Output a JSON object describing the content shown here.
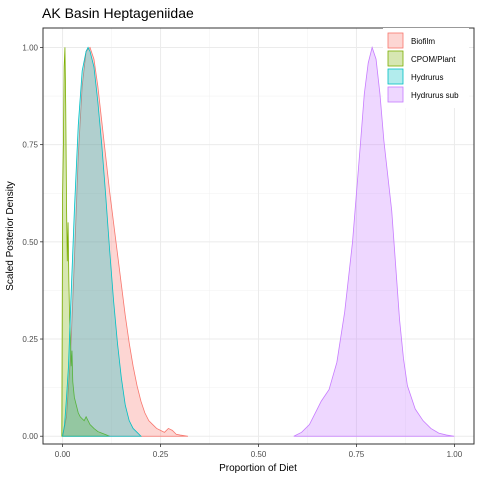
{
  "chart_data": {
    "type": "area",
    "title": "AK Basin Heptageniidae",
    "xlabel": "Proportion of Diet",
    "ylabel": "Scaled Posterior Density",
    "xlim": [
      -0.05,
      1.05
    ],
    "ylim": [
      -0.02,
      1.05
    ],
    "x_ticks": [
      0,
      0.25,
      0.5,
      0.75,
      1
    ],
    "x_tick_labels": [
      "0.00",
      "0.25",
      "0.50",
      "0.75",
      "1.00"
    ],
    "y_ticks": [
      0,
      0.25,
      0.5,
      0.75,
      1
    ],
    "y_tick_labels": [
      "0.00",
      "0.25",
      "0.50",
      "0.75",
      "1.00"
    ],
    "grid": true,
    "legend_position": "top-right",
    "series": [
      {
        "name": "Biofilm",
        "fill": "#f8766d",
        "points": [
          [
            0.0,
            0.0
          ],
          [
            0.01,
            0.05
          ],
          [
            0.02,
            0.2
          ],
          [
            0.03,
            0.45
          ],
          [
            0.04,
            0.72
          ],
          [
            0.05,
            0.9
          ],
          [
            0.06,
            0.99
          ],
          [
            0.07,
            1.0
          ],
          [
            0.08,
            0.97
          ],
          [
            0.09,
            0.9
          ],
          [
            0.1,
            0.81
          ],
          [
            0.11,
            0.72
          ],
          [
            0.12,
            0.63
          ],
          [
            0.13,
            0.55
          ],
          [
            0.14,
            0.47
          ],
          [
            0.15,
            0.39
          ],
          [
            0.16,
            0.31
          ],
          [
            0.17,
            0.24
          ],
          [
            0.18,
            0.18
          ],
          [
            0.19,
            0.13
          ],
          [
            0.2,
            0.09
          ],
          [
            0.21,
            0.06
          ],
          [
            0.22,
            0.04
          ],
          [
            0.23,
            0.03
          ],
          [
            0.24,
            0.02
          ],
          [
            0.25,
            0.015
          ],
          [
            0.26,
            0.01
          ],
          [
            0.27,
            0.02
          ],
          [
            0.28,
            0.015
          ],
          [
            0.29,
            0.005
          ],
          [
            0.3,
            0.003
          ],
          [
            0.32,
            0.0
          ]
        ]
      },
      {
        "name": "CPOM/Plant",
        "fill": "#7cae00",
        "points": [
          [
            -0.002,
            0.0
          ],
          [
            0.0,
            0.62
          ],
          [
            0.002,
            0.75
          ],
          [
            0.004,
            0.95
          ],
          [
            0.006,
            1.0
          ],
          [
            0.008,
            0.85
          ],
          [
            0.01,
            0.6
          ],
          [
            0.012,
            0.45
          ],
          [
            0.014,
            0.55
          ],
          [
            0.016,
            0.4
          ],
          [
            0.018,
            0.3
          ],
          [
            0.02,
            0.25
          ],
          [
            0.022,
            0.18
          ],
          [
            0.024,
            0.22
          ],
          [
            0.026,
            0.14
          ],
          [
            0.028,
            0.12
          ],
          [
            0.03,
            0.1
          ],
          [
            0.035,
            0.08
          ],
          [
            0.04,
            0.06
          ],
          [
            0.045,
            0.05
          ],
          [
            0.05,
            0.045
          ],
          [
            0.055,
            0.04
          ],
          [
            0.06,
            0.05
          ],
          [
            0.07,
            0.03
          ],
          [
            0.08,
            0.02
          ],
          [
            0.09,
            0.012
          ],
          [
            0.1,
            0.008
          ],
          [
            0.11,
            0.004
          ],
          [
            0.12,
            0.0
          ]
        ]
      },
      {
        "name": "Hydrurus",
        "fill": "#00bfc4",
        "points": [
          [
            0.0,
            0.0
          ],
          [
            0.005,
            0.03
          ],
          [
            0.01,
            0.1
          ],
          [
            0.015,
            0.18
          ],
          [
            0.02,
            0.32
          ],
          [
            0.03,
            0.58
          ],
          [
            0.04,
            0.8
          ],
          [
            0.05,
            0.94
          ],
          [
            0.06,
            0.99
          ],
          [
            0.065,
            1.0
          ],
          [
            0.07,
            0.99
          ],
          [
            0.08,
            0.95
          ],
          [
            0.09,
            0.86
          ],
          [
            0.1,
            0.75
          ],
          [
            0.11,
            0.62
          ],
          [
            0.12,
            0.48
          ],
          [
            0.13,
            0.35
          ],
          [
            0.14,
            0.24
          ],
          [
            0.15,
            0.15
          ],
          [
            0.16,
            0.08
          ],
          [
            0.17,
            0.04
          ],
          [
            0.18,
            0.02
          ],
          [
            0.19,
            0.01
          ],
          [
            0.2,
            0.0
          ]
        ]
      },
      {
        "name": "Hydrurus sub",
        "fill": "#c77cff",
        "points": [
          [
            0.59,
            0.0
          ],
          [
            0.61,
            0.01
          ],
          [
            0.63,
            0.03
          ],
          [
            0.65,
            0.07
          ],
          [
            0.66,
            0.09
          ],
          [
            0.68,
            0.12
          ],
          [
            0.7,
            0.19
          ],
          [
            0.72,
            0.32
          ],
          [
            0.74,
            0.5
          ],
          [
            0.76,
            0.75
          ],
          [
            0.77,
            0.88
          ],
          [
            0.78,
            0.96
          ],
          [
            0.79,
            1.0
          ],
          [
            0.8,
            0.97
          ],
          [
            0.81,
            0.88
          ],
          [
            0.82,
            0.76
          ],
          [
            0.84,
            0.58
          ],
          [
            0.85,
            0.44
          ],
          [
            0.86,
            0.3
          ],
          [
            0.87,
            0.2
          ],
          [
            0.88,
            0.13
          ],
          [
            0.9,
            0.07
          ],
          [
            0.92,
            0.04
          ],
          [
            0.94,
            0.02
          ],
          [
            0.96,
            0.008
          ],
          [
            0.98,
            0.003
          ],
          [
            1.0,
            0.0
          ]
        ]
      }
    ]
  }
}
